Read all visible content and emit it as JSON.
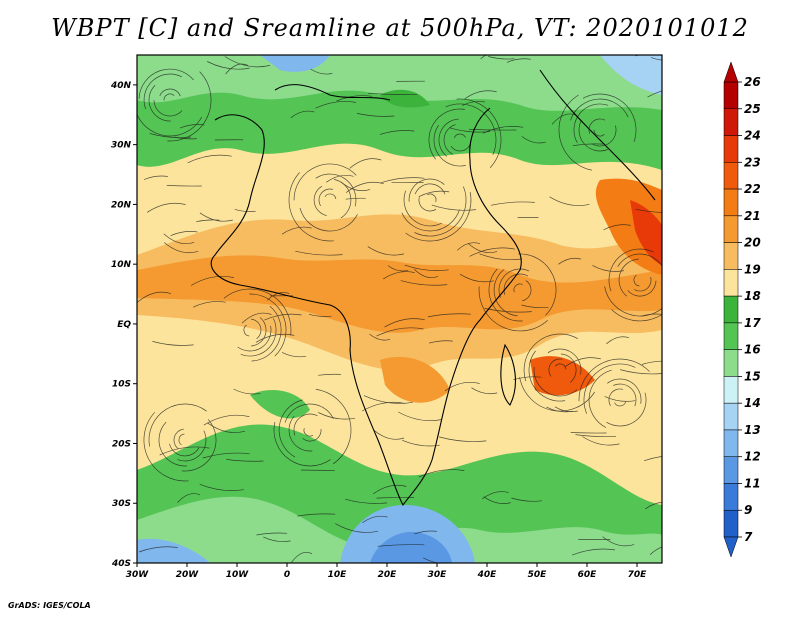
{
  "title": "WBPT [C] and Sreamline at 500hPa, VT: 2020101012",
  "credit": "GrADS: IGES/COLA",
  "map": {
    "lon_range": [
      -30,
      75
    ],
    "lat_range": [
      -40,
      45
    ],
    "lon_ticks": [
      "30W",
      "20W",
      "10W",
      "0",
      "10E",
      "20E",
      "30E",
      "40E",
      "50E",
      "60E",
      "70E"
    ],
    "lat_ticks": [
      "40N",
      "30N",
      "20N",
      "10N",
      "EQ",
      "10S",
      "20S",
      "30S",
      "40S"
    ]
  },
  "colorbar": {
    "levels": [
      "26",
      "25",
      "24",
      "23",
      "22",
      "21",
      "20",
      "19",
      "18",
      "17",
      "16",
      "15",
      "14",
      "13",
      "12",
      "11",
      "9",
      "7"
    ],
    "colors": [
      "#b40000",
      "#d01808",
      "#e83a08",
      "#f05a0c",
      "#f47c14",
      "#f49a30",
      "#f8bc60",
      "#fce49c",
      "#3cb43c",
      "#54c454",
      "#8cdc8c",
      "#cdf2f6",
      "#a6d2f4",
      "#80b8ee",
      "#5a98e4",
      "#3a7ad8",
      "#2060c8"
    ]
  }
}
